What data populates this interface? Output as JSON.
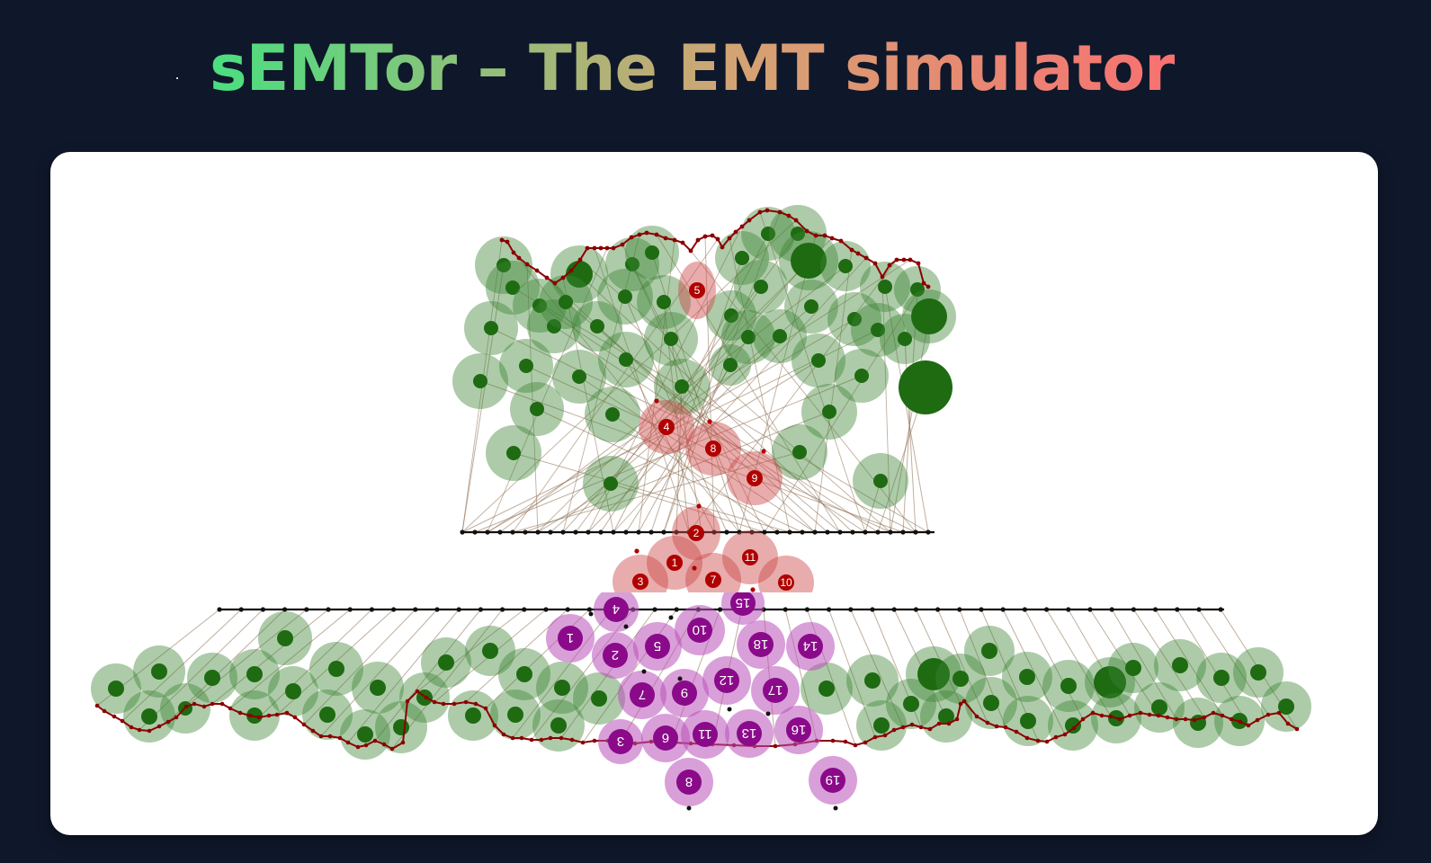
{
  "app": {
    "title": "sEMTor – The EMT simulator",
    "title_gradient": [
      "#4ade80",
      "#d4a373",
      "#f87171"
    ]
  },
  "colors": {
    "background": "#0f172a",
    "panel": "#ffffff",
    "epithelial_cell": "#1e6b12",
    "epithelial_halo": "rgba(60,130,50,0.42)",
    "mesenchymal_cell": "#b00000",
    "mesenchymal_halo": "rgba(205,70,70,0.45)",
    "purple_cell": "#8a0a8a",
    "purple_halo": "rgba(185,80,185,0.55)",
    "apical_line": "#8b0000",
    "basement_line": "#111111",
    "fiber": "rgba(140,110,80,0.55)"
  },
  "simulation": {
    "top_tissue": {
      "red_cell_labels": [
        "5",
        "4",
        "8",
        "9",
        "2",
        "1",
        "11",
        "3",
        "7",
        "10"
      ]
    },
    "bottom_tissue": {
      "purple_cell_labels": [
        "4",
        "15",
        "1",
        "10",
        "5",
        "2",
        "18",
        "14",
        "12",
        "7",
        "9",
        "17",
        "3",
        "6",
        "11",
        "13",
        "16",
        "8",
        "19"
      ]
    }
  }
}
